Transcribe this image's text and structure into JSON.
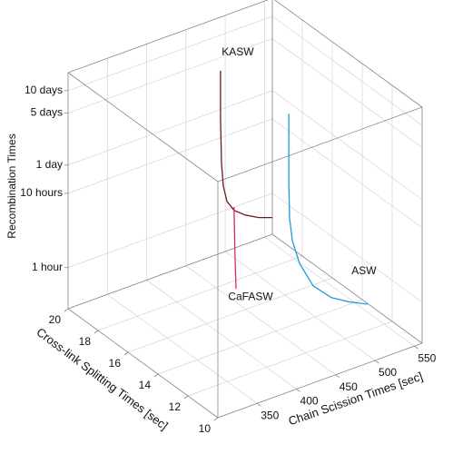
{
  "chart_data": {
    "type": "line3d",
    "x_label": "Chain Scission Times [sec]",
    "y_label": "Cross-link Splitting Times [sec]",
    "z_label": "Recombination Times",
    "xlim": [
      300,
      560
    ],
    "ylim": [
      10,
      20
    ],
    "zlim": [
      0.28,
      420
    ],
    "zscale": "log",
    "grid": true,
    "xticks": [
      350,
      400,
      450,
      500,
      550
    ],
    "yticks": [
      10,
      12,
      14,
      16,
      18,
      20
    ],
    "zticks": [
      {
        "value": 1,
        "label": "1 hour"
      },
      {
        "value": 10,
        "label": "10 hours"
      },
      {
        "value": 24,
        "label": "1 day"
      },
      {
        "value": 120,
        "label": "5 days"
      },
      {
        "value": 240,
        "label": "10 days"
      }
    ],
    "series": [
      {
        "name": "KASW",
        "color": "#6e1c1c",
        "x": [
          475,
          475,
          476.2,
          478.5,
          483.1,
          492.3,
          506.2,
          523.5,
          540.9
        ],
        "y": [
          19,
          19,
          19,
          19,
          19,
          19,
          19,
          19,
          19
        ],
        "z": [
          132,
          31,
          7.4,
          3.6,
          2.15,
          1.5,
          1.15,
          0.91,
          0.78
        ]
      },
      {
        "name": "ASW",
        "color": "#1f9bd7",
        "x": [
          447.4,
          447.4,
          448.5,
          451.9,
          461.1,
          478.5,
          501.7,
          524.7,
          547.8
        ],
        "y": [
          13,
          13,
          13,
          13,
          13,
          13,
          13,
          13,
          13
        ],
        "z": [
          338,
          41,
          13.2,
          6.4,
          2.9,
          1.24,
          0.7,
          0.5,
          0.38
        ]
      },
      {
        "name": "CaFASW",
        "color": "#d8266f",
        "x": [
          435,
          436,
          437.5
        ],
        "y": [
          16,
          16,
          16
        ],
        "z": [
          7.6,
          2,
          0.59
        ]
      }
    ]
  }
}
